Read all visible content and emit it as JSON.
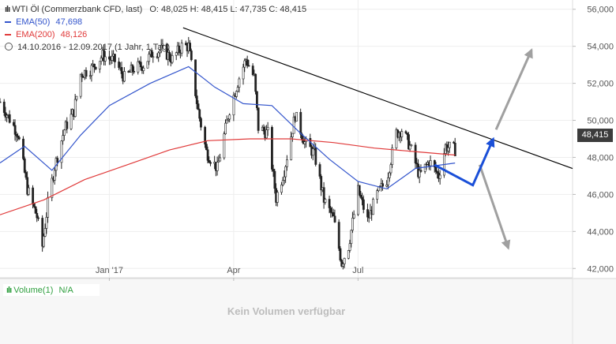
{
  "header": {
    "instrument": "WTI Öl (Commerzbank CFD, last)",
    "ohlc": "O: 48,025   H: 48,415   L: 47,735   C: 48,415",
    "ema50_label": "EMA(50)",
    "ema50_value": "47,698",
    "ema200_label": "EMA(200)",
    "ema200_value": "48,126",
    "range_text": "14.10.2016 - 12.09.2017  (1 Jahr, 1 Tag)"
  },
  "current_price_label": "48,415",
  "volume_panel": {
    "label": "Volume(1)",
    "value": "N/A",
    "empty_text": "Kein Volumen verfügbar"
  },
  "colors": {
    "candle": "#222222",
    "ema50": "#3355cc",
    "ema200": "#e03a3a",
    "trendline": "#000000",
    "projection": "#1a4fd8",
    "scenario_arrows": "#a0a0a0",
    "volume_label": "#2e9e3e"
  },
  "chart_data": {
    "type": "candlestick",
    "title": "WTI Öl (Commerzbank CFD, last)",
    "ylim": [
      41500,
      56500
    ],
    "y_ticks": [
      {
        "label": "56,000",
        "value": 56000
      },
      {
        "label": "54,000",
        "value": 54000
      },
      {
        "label": "52,000",
        "value": 52000
      },
      {
        "label": "50,000",
        "value": 50000
      },
      {
        "label": "48,000",
        "value": 48000
      },
      {
        "label": "46,000",
        "value": 46000
      },
      {
        "label": "44,000",
        "value": 44000
      },
      {
        "label": "42,000",
        "value": 42000
      }
    ],
    "x_ticks": [
      {
        "label": "Jan '17",
        "date": "2017-01-02"
      },
      {
        "label": "Apr",
        "date": "2017-04-03"
      },
      {
        "label": "Jul",
        "date": "2017-07-03"
      }
    ],
    "x_range": [
      "2016-10-14",
      "2017-12-07"
    ],
    "close_path": [
      [
        "2016-10-14",
        51000
      ],
      [
        "2016-10-20",
        50200
      ],
      [
        "2016-10-27",
        49300
      ],
      [
        "2016-11-03",
        46300
      ],
      [
        "2016-11-10",
        44800
      ],
      [
        "2016-11-14",
        43200
      ],
      [
        "2016-11-18",
        45500
      ],
      [
        "2016-11-23",
        47500
      ],
      [
        "2016-11-30",
        49500
      ],
      [
        "2016-12-07",
        50500
      ],
      [
        "2016-12-12",
        52500
      ],
      [
        "2016-12-20",
        52800
      ],
      [
        "2016-12-28",
        53500
      ],
      [
        "2017-01-06",
        53200
      ],
      [
        "2017-01-13",
        52300
      ],
      [
        "2017-01-20",
        52800
      ],
      [
        "2017-01-27",
        53000
      ],
      [
        "2017-02-03",
        53700
      ],
      [
        "2017-02-10",
        53800
      ],
      [
        "2017-02-17",
        53300
      ],
      [
        "2017-02-24",
        54000
      ],
      [
        "2017-03-01",
        54000
      ],
      [
        "2017-03-08",
        50500
      ],
      [
        "2017-03-14",
        48300
      ],
      [
        "2017-03-22",
        47400
      ],
      [
        "2017-03-31",
        50600
      ],
      [
        "2017-04-07",
        52300
      ],
      [
        "2017-04-12",
        53300
      ],
      [
        "2017-04-18",
        52300
      ],
      [
        "2017-04-21",
        49600
      ],
      [
        "2017-04-28",
        49300
      ],
      [
        "2017-05-04",
        45800
      ],
      [
        "2017-05-10",
        47300
      ],
      [
        "2017-05-18",
        50300
      ],
      [
        "2017-05-25",
        48800
      ],
      [
        "2017-06-01",
        48200
      ],
      [
        "2017-06-08",
        45700
      ],
      [
        "2017-06-15",
        44700
      ],
      [
        "2017-06-21",
        42300
      ],
      [
        "2017-06-26",
        43200
      ],
      [
        "2017-07-03",
        46200
      ],
      [
        "2017-07-10",
        44600
      ],
      [
        "2017-07-17",
        46000
      ],
      [
        "2017-07-24",
        46800
      ],
      [
        "2017-07-31",
        49300
      ],
      [
        "2017-08-04",
        49500
      ],
      [
        "2017-08-10",
        48600
      ],
      [
        "2017-08-17",
        47000
      ],
      [
        "2017-08-24",
        47800
      ],
      [
        "2017-08-31",
        47000
      ],
      [
        "2017-09-05",
        48600
      ],
      [
        "2017-09-12",
        48415
      ]
    ],
    "ema50": {
      "name": "EMA(50)",
      "points": [
        [
          "2016-10-14",
          47700
        ],
        [
          "2016-11-01",
          48600
        ],
        [
          "2016-11-21",
          47300
        ],
        [
          "2016-12-12",
          49200
        ],
        [
          "2017-01-02",
          50800
        ],
        [
          "2017-02-01",
          52000
        ],
        [
          "2017-03-01",
          52900
        ],
        [
          "2017-03-20",
          51800
        ],
        [
          "2017-04-10",
          50900
        ],
        [
          "2017-05-01",
          50800
        ],
        [
          "2017-05-22",
          49300
        ],
        [
          "2017-06-12",
          47900
        ],
        [
          "2017-07-03",
          46700
        ],
        [
          "2017-07-24",
          46300
        ],
        [
          "2017-08-14",
          47400
        ],
        [
          "2017-09-12",
          47698
        ]
      ]
    },
    "ema200": {
      "name": "EMA(200)",
      "points": [
        [
          "2016-10-14",
          44900
        ],
        [
          "2016-11-15",
          45700
        ],
        [
          "2016-12-15",
          46800
        ],
        [
          "2017-01-15",
          47600
        ],
        [
          "2017-02-15",
          48400
        ],
        [
          "2017-03-15",
          48900
        ],
        [
          "2017-04-15",
          49000
        ],
        [
          "2017-05-15",
          49000
        ],
        [
          "2017-06-15",
          48800
        ],
        [
          "2017-07-15",
          48500
        ],
        [
          "2017-08-15",
          48300
        ],
        [
          "2017-09-12",
          48126
        ]
      ]
    },
    "trendline": {
      "from": [
        "2017-02-25",
        55000
      ],
      "to": [
        "2017-12-07",
        47400
      ]
    },
    "projection": [
      [
        "2017-08-28",
        47600
      ],
      [
        "2017-09-25",
        46500
      ],
      [
        "2017-10-10",
        49000
      ]
    ],
    "scenario_arrows": [
      {
        "from": [
          "2017-10-12",
          49500
        ],
        "to": [
          "2017-11-07",
          53800
        ]
      },
      {
        "from": [
          "2017-09-30",
          47600
        ],
        "to": [
          "2017-10-21",
          43100
        ]
      }
    ]
  }
}
